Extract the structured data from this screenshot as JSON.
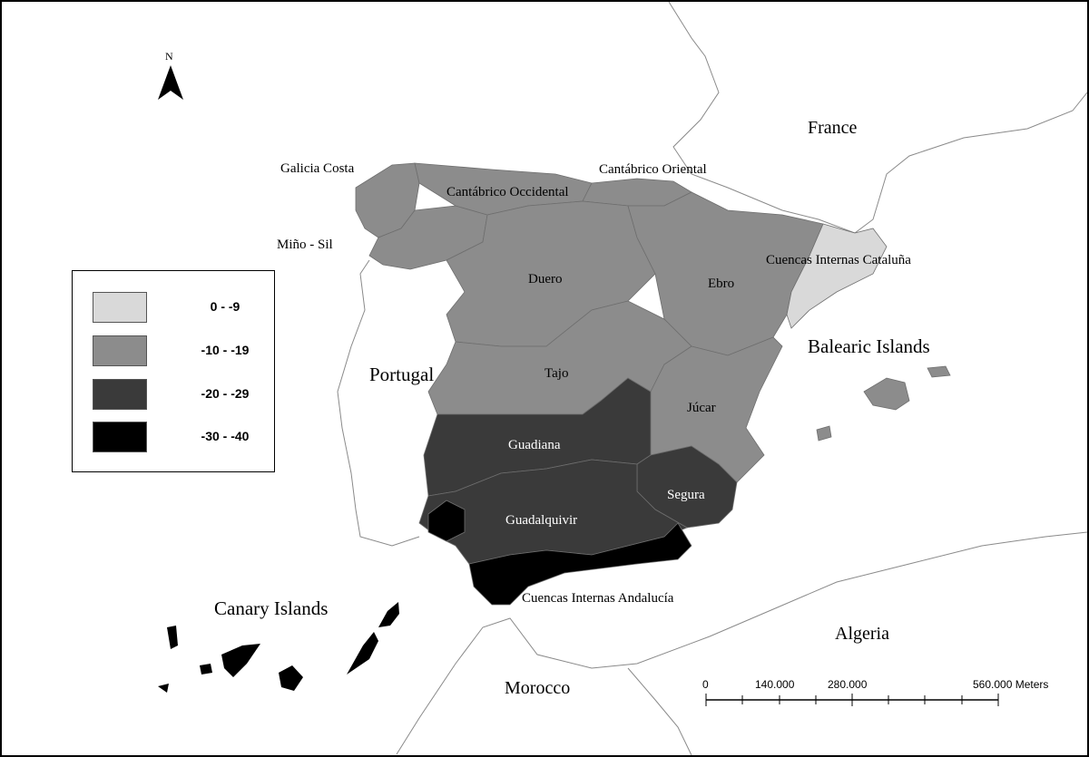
{
  "map": {
    "north_arrow_label": "N",
    "country_labels": {
      "france": "France",
      "portugal": "Portugal",
      "algeria": "Algeria",
      "morocco": "Morocco",
      "balearic": "Balearic Islands",
      "canary": "Canary Islands"
    },
    "basin_labels": {
      "galicia_costa": "Galicia Costa",
      "mino_sil": "Miño - Sil",
      "cantabrico_occidental": "Cantábrico Occidental",
      "cantabrico_oriental": "Cantábrico Oriental",
      "cuencas_internas_cataluna": "Cuencas Internas Cataluña",
      "duero": "Duero",
      "ebro": "Ebro",
      "tajo": "Tajo",
      "jucar": "Júcar",
      "guadiana": "Guadiana",
      "segura": "Segura",
      "guadalquivir": "Guadalquivir",
      "cuencas_internas_andalucia": "Cuencas Internas Andalucía"
    },
    "classes": {
      "cuencas_internas_cataluna": "0 - -9",
      "galicia_costa": "-10 - -19",
      "mino_sil": "-10 - -19",
      "cantabrico_occidental": "-10 - -19",
      "cantabrico_oriental": "-10 - -19",
      "duero": "-10 - -19",
      "ebro": "-10 - -19",
      "tajo": "-10 - -19",
      "jucar": "-10 - -19",
      "guadiana": "-20 - -29",
      "segura": "-20 - -29",
      "guadalquivir": "-20 - -29",
      "cuencas_internas_andalucia": "-30 - -40",
      "canary_islands": "-30 - -40"
    }
  },
  "legend": {
    "items": [
      {
        "label": "0  -  -9",
        "color": "#d9d9d9"
      },
      {
        "label": "-10  -  -19",
        "color": "#8c8c8c"
      },
      {
        "label": "-20  -  -29",
        "color": "#3a3a3a"
      },
      {
        "label": "-30  -  -40",
        "color": "#000000"
      }
    ]
  },
  "scale_bar": {
    "ticks": [
      "0",
      "140.000",
      "280.000",
      "560.000 Meters"
    ]
  },
  "colors": {
    "class_0_9": "#d9d9d9",
    "class_10_19": "#8c8c8c",
    "class_20_29": "#3a3a3a",
    "class_30_40": "#000000",
    "coastline": "#8a8a8a"
  }
}
